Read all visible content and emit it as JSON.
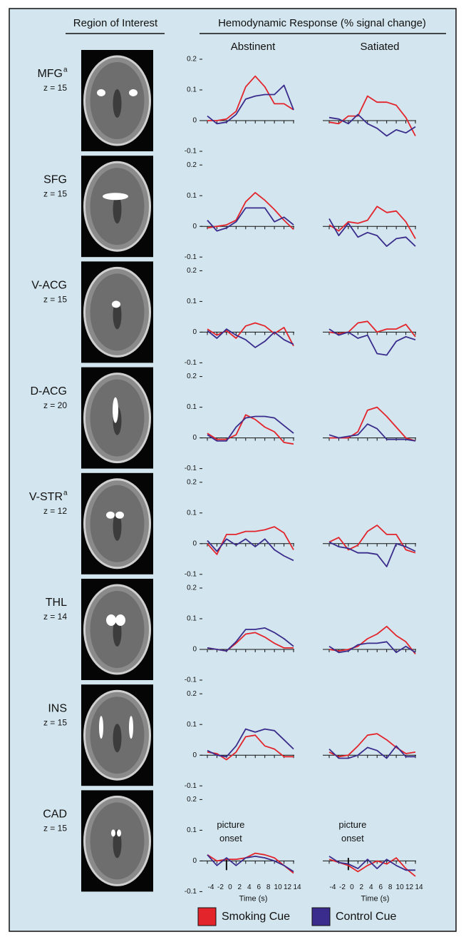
{
  "chart_data": {
    "type": "line",
    "header": {
      "roi": "Region of Interest",
      "response": "Hemodynamic Response (% signal change)",
      "conditions": [
        "Abstinent",
        "Satiated"
      ]
    },
    "x": [
      -4,
      -2,
      0,
      2,
      4,
      6,
      8,
      10,
      12,
      14
    ],
    "xlim": [
      -4,
      14
    ],
    "xticks": [
      -4,
      -2,
      0,
      2,
      4,
      6,
      8,
      10,
      12,
      14
    ],
    "xlabel": "Time (s)",
    "ylim": [
      -0.1,
      0.2
    ],
    "yticks": [
      0.2,
      0.1,
      0,
      -0.1
    ],
    "legend": [
      {
        "name": "Smoking Cue",
        "color": "#e3242b"
      },
      {
        "name": "Control Cue",
        "color": "#3a2c8c"
      }
    ],
    "rows": [
      {
        "name": "MFG",
        "note": "a",
        "z": "z = 15",
        "panels": [
          {
            "series": [
              {
                "values": [
                  0,
                  0,
                  0.005,
                  0.03,
                  0.11,
                  0.145,
                  0.11,
                  0.055,
                  0.055,
                  0.035
                ]
              },
              {
                "values": [
                  0.015,
                  -0.01,
                  -0.005,
                  0.02,
                  0.07,
                  0.08,
                  0.085,
                  0.085,
                  0.115,
                  0.035
                ]
              }
            ]
          },
          {
            "series": [
              {
                "values": [
                  -0.005,
                  -0.01,
                  0.015,
                  0.015,
                  0.08,
                  0.06,
                  0.06,
                  0.05,
                  0.01,
                  -0.05
                ]
              },
              {
                "values": [
                  0.01,
                  0.005,
                  -0.01,
                  0.02,
                  -0.01,
                  -0.025,
                  -0.05,
                  -0.03,
                  -0.04,
                  -0.02
                ]
              }
            ]
          }
        ]
      },
      {
        "name": "SFG",
        "z": "z = 15",
        "panels": [
          {
            "series": [
              {
                "values": [
                  -0.005,
                  0,
                  0.005,
                  0.02,
                  0.08,
                  0.11,
                  0.085,
                  0.055,
                  0.02,
                  -0.01
                ]
              },
              {
                "values": [
                  0.02,
                  -0.015,
                  -0.005,
                  0.015,
                  0.06,
                  0.06,
                  0.06,
                  0.015,
                  0.03,
                  0.005
                ]
              }
            ]
          },
          {
            "series": [
              {
                "values": [
                  0.005,
                  -0.015,
                  0.015,
                  0.01,
                  0.02,
                  0.065,
                  0.045,
                  0.05,
                  0.015,
                  -0.04
                ]
              },
              {
                "values": [
                  0.025,
                  -0.03,
                  0.01,
                  -0.035,
                  -0.02,
                  -0.03,
                  -0.065,
                  -0.04,
                  -0.035,
                  -0.065
                ]
              }
            ]
          }
        ]
      },
      {
        "name": "V-ACG",
        "z": "z = 15",
        "panels": [
          {
            "series": [
              {
                "values": [
                  0.01,
                  -0.01,
                  0.005,
                  -0.02,
                  0.02,
                  0.03,
                  0.02,
                  -0.005,
                  0.015,
                  -0.045
                ]
              },
              {
                "values": [
                  0.005,
                  -0.02,
                  0.01,
                  -0.01,
                  -0.025,
                  -0.05,
                  -0.03,
                  0,
                  -0.025,
                  -0.04
                ]
              }
            ]
          },
          {
            "series": [
              {
                "values": [
                  0,
                  -0.005,
                  0,
                  0.03,
                  0.035,
                  0,
                  0.01,
                  0.01,
                  0.025,
                  -0.015
                ]
              },
              {
                "values": [
                  0.01,
                  -0.01,
                  0,
                  -0.02,
                  -0.01,
                  -0.07,
                  -0.075,
                  -0.03,
                  -0.015,
                  -0.025
                ]
              }
            ]
          }
        ]
      },
      {
        "name": "D-ACG",
        "z": "z = 20",
        "panels": [
          {
            "series": [
              {
                "values": [
                  0.015,
                  -0.005,
                  -0.005,
                  0.01,
                  0.075,
                  0.06,
                  0.035,
                  0.02,
                  -0.015,
                  -0.02
                ]
              },
              {
                "values": [
                  0.01,
                  -0.01,
                  -0.01,
                  0.035,
                  0.065,
                  0.07,
                  0.07,
                  0.065,
                  0.04,
                  0.015
                ]
              }
            ]
          },
          {
            "series": [
              {
                "values": [
                  0,
                  0,
                  0,
                  0.02,
                  0.09,
                  0.1,
                  0.07,
                  0.035,
                  0,
                  -0.01
                ]
              },
              {
                "values": [
                  0.01,
                  0,
                  0.005,
                  0.01,
                  0.045,
                  0.03,
                  -0.005,
                  -0.005,
                  -0.005,
                  -0.01
                ]
              }
            ]
          }
        ]
      },
      {
        "name": "V-STR",
        "note": "a",
        "z": "z = 12",
        "panels": [
          {
            "series": [
              {
                "values": [
                  0,
                  -0.035,
                  0.03,
                  0.03,
                  0.04,
                  0.04,
                  0.045,
                  0.055,
                  0.035,
                  -0.02
                ]
              },
              {
                "values": [
                  0.01,
                  -0.025,
                  0.015,
                  -0.005,
                  0.015,
                  -0.01,
                  0.015,
                  -0.02,
                  -0.04,
                  -0.055
                ]
              }
            ]
          },
          {
            "series": [
              {
                "values": [
                  0.005,
                  0.02,
                  -0.02,
                  -0.005,
                  0.04,
                  0.06,
                  0.03,
                  0.03,
                  -0.02,
                  -0.03
                ]
              },
              {
                "values": [
                  0.005,
                  -0.01,
                  -0.015,
                  -0.03,
                  -0.03,
                  -0.035,
                  -0.075,
                  0,
                  -0.01,
                  -0.025
                ]
              }
            ]
          }
        ]
      },
      {
        "name": "THL",
        "z": "z = 14",
        "panels": [
          {
            "series": [
              {
                "values": [
                  0.005,
                  0,
                  -0.005,
                  0.02,
                  0.05,
                  0.055,
                  0.04,
                  0.02,
                  0.005,
                  0.005
                ]
              },
              {
                "values": [
                  0.005,
                  0,
                  -0.005,
                  0.025,
                  0.065,
                  0.065,
                  0.07,
                  0.055,
                  0.035,
                  0.01
                ]
              }
            ]
          },
          {
            "series": [
              {
                "values": [
                  0,
                  -0.005,
                  0,
                  0.01,
                  0.035,
                  0.05,
                  0.075,
                  0.045,
                  0.025,
                  -0.015
                ]
              },
              {
                "values": [
                  0.01,
                  -0.01,
                  -0.005,
                  0.015,
                  0.02,
                  0.02,
                  0.025,
                  -0.01,
                  0.01,
                  -0.01
                ]
              }
            ]
          }
        ]
      },
      {
        "name": "INS",
        "z": "z = 15",
        "panels": [
          {
            "series": [
              {
                "values": [
                  0.01,
                  0.005,
                  -0.015,
                  0.01,
                  0.06,
                  0.065,
                  0.03,
                  0.02,
                  -0.005,
                  -0.005
                ]
              },
              {
                "values": [
                  0.015,
                  0,
                  -0.005,
                  0.03,
                  0.085,
                  0.075,
                  0.085,
                  0.08,
                  0.05,
                  0.02
                ]
              }
            ]
          },
          {
            "series": [
              {
                "values": [
                  0.01,
                  -0.005,
                  0,
                  0.03,
                  0.065,
                  0.07,
                  0.05,
                  0.025,
                  0.005,
                  0.01
                ]
              },
              {
                "values": [
                  0.02,
                  -0.01,
                  -0.01,
                  0,
                  0.025,
                  0.015,
                  -0.01,
                  0.03,
                  -0.005,
                  -0.005
                ]
              }
            ]
          }
        ]
      },
      {
        "name": "CAD",
        "z": "z = 15",
        "panels": [
          {
            "annotation": "picture onset",
            "series": [
              {
                "values": [
                  0.02,
                  0,
                  0.005,
                  0.005,
                  0.01,
                  0.025,
                  0.02,
                  0.01,
                  -0.015,
                  -0.04
                ]
              },
              {
                "values": [
                  0.02,
                  -0.015,
                  0.01,
                  -0.015,
                  0.01,
                  0.015,
                  0.01,
                  0,
                  -0.015,
                  -0.035
                ]
              }
            ]
          },
          {
            "annotation": "picture onset",
            "series": [
              {
                "values": [
                  0.005,
                  -0.005,
                  -0.015,
                  -0.035,
                  -0.015,
                  0,
                  -0.01,
                  0.01,
                  -0.025,
                  -0.05
                ]
              },
              {
                "values": [
                  0.015,
                  -0.005,
                  -0.01,
                  -0.025,
                  0.005,
                  -0.025,
                  0.005,
                  -0.015,
                  -0.03,
                  -0.03
                ]
              }
            ]
          }
        ]
      }
    ]
  }
}
